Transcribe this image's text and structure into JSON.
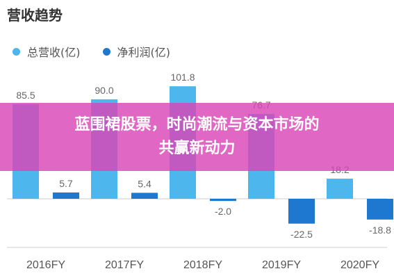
{
  "colors": {
    "revenue": "#4DB6EC",
    "net_profit": "#1F78D0",
    "label": "#666666",
    "axis": "#cccccc",
    "banner": "#D946B7"
  },
  "banner": {
    "line1": "蓝围裙股票，时尚潮流与资本市场的",
    "line2": "共赢新动力"
  },
  "chart_data": {
    "type": "bar",
    "title": "营收趋势",
    "categories": [
      "2016FY",
      "2017FY",
      "2018FY",
      "2019FY",
      "2020FY"
    ],
    "series": [
      {
        "name": "总营收(亿)",
        "values": [
          85.5,
          90.0,
          101.8,
          76.7,
          18.2
        ],
        "labels": [
          "85.5",
          "90.0",
          "101.8",
          "76.7",
          "18.2"
        ]
      },
      {
        "name": "净利润(亿)",
        "values": [
          5.7,
          5.4,
          -2.0,
          -22.5,
          -18.8
        ],
        "labels": [
          "5.7",
          "5.4",
          "-2.0",
          "-22.5",
          "-18.8"
        ]
      }
    ],
    "legend": "top-left",
    "grid": false
  }
}
